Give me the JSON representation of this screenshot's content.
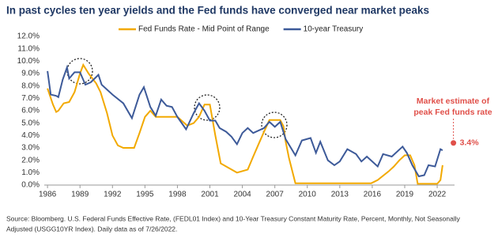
{
  "chart_data": {
    "type": "line",
    "title": "In past cycles ten year yields and the Fed funds have converged near market peaks",
    "source": [
      "Source: Bloomberg. U.S. Federal Funds Effective Rate, (FEDL01 Index) and 10-Year Treasury Constant Maturity Rate, Percent, Monthly, Not Seasonally",
      "Adjusted (USGG10YR Index). Daily data as of 7/26/2022."
    ],
    "xlim": [
      1985.7,
      2023.6
    ],
    "xticks": [
      1986,
      1989,
      1992,
      1995,
      1998,
      2001,
      2004,
      2007,
      2010,
      2013,
      2016,
      2019,
      2022
    ],
    "ylim": [
      0,
      12
    ],
    "yticks": [
      {
        "value": 0,
        "label": "0.0%"
      },
      {
        "value": 1,
        "label": "1.0%"
      },
      {
        "value": 2,
        "label": "2.0%"
      },
      {
        "value": 3,
        "label": "3.0%"
      },
      {
        "value": 4,
        "label": "4.0%"
      },
      {
        "value": 5,
        "label": "5.0%"
      },
      {
        "value": 6,
        "label": "6.0%"
      },
      {
        "value": 7,
        "label": "7.0%"
      },
      {
        "value": 8,
        "label": "8.0%"
      },
      {
        "value": 9,
        "label": "9.0%"
      },
      {
        "value": 10,
        "label": "10.0%"
      },
      {
        "value": 11,
        "label": "11.0%"
      },
      {
        "value": 12,
        "label": "12.0%"
      }
    ],
    "grid": false,
    "legend": "top",
    "series": [
      {
        "name": "Fed Funds Rate - Mid Point of Range",
        "color": "#f2a900",
        "x": [
          1986.0,
          1986.5,
          1986.8,
          1987.0,
          1987.5,
          1988.0,
          1988.5,
          1989.0,
          1989.3,
          1989.8,
          1990.5,
          1990.9,
          1991.5,
          1992.0,
          1992.5,
          1993.0,
          1994.0,
          1994.5,
          1995.0,
          1995.5,
          1996.0,
          1997.0,
          1998.0,
          1998.9,
          1999.5,
          2000.0,
          2000.5,
          2001.0,
          2001.5,
          2002.0,
          2003.0,
          2003.5,
          2004.5,
          2005.0,
          2005.5,
          2006.0,
          2006.5,
          2007.5,
          2007.8,
          2008.0,
          2008.3,
          2008.9,
          2015.9,
          2016.5,
          2017.5,
          2018.0,
          2018.5,
          2019.0,
          2019.5,
          2019.9,
          2020.2,
          2022.0,
          2022.3,
          2022.5
        ],
        "values": [
          7.8,
          6.5,
          5.9,
          6.0,
          6.6,
          6.7,
          7.5,
          9.0,
          9.7,
          9.0,
          8.2,
          7.5,
          5.8,
          4.0,
          3.2,
          3.0,
          3.0,
          4.2,
          5.5,
          6.0,
          5.5,
          5.5,
          5.5,
          4.8,
          5.0,
          5.5,
          6.5,
          6.5,
          4.0,
          1.75,
          1.25,
          1.0,
          1.25,
          2.3,
          3.3,
          4.3,
          5.25,
          5.25,
          4.75,
          3.5,
          2.2,
          0.15,
          0.15,
          0.4,
          1.1,
          1.5,
          2.0,
          2.4,
          2.4,
          1.6,
          0.1,
          0.1,
          0.4,
          1.6
        ]
      },
      {
        "name": "10-year Treasury",
        "color": "#3d5a99",
        "x": [
          1986.0,
          1986.3,
          1986.8,
          1987.0,
          1987.4,
          1987.8,
          1988.0,
          1988.5,
          1989.0,
          1989.5,
          1990.0,
          1990.7,
          1991.0,
          1992.0,
          1993.0,
          1993.8,
          1994.5,
          1994.9,
          1995.5,
          1996.0,
          1996.5,
          1997.0,
          1997.5,
          1998.0,
          1998.8,
          1999.5,
          2000.0,
          2000.5,
          2001.0,
          2001.5,
          2001.9,
          2002.5,
          2003.0,
          2003.5,
          2004.0,
          2004.5,
          2005.0,
          2006.0,
          2006.5,
          2007.0,
          2007.5,
          2008.0,
          2008.9,
          2009.5,
          2010.3,
          2010.8,
          2011.2,
          2011.9,
          2012.5,
          2013.0,
          2013.7,
          2014.5,
          2015.0,
          2015.5,
          2016.5,
          2017.0,
          2017.8,
          2018.8,
          2019.2,
          2019.7,
          2020.3,
          2020.8,
          2021.2,
          2021.8,
          2022.3,
          2022.5
        ],
        "values": [
          9.2,
          7.3,
          7.2,
          7.1,
          8.5,
          9.5,
          8.6,
          9.1,
          9.1,
          8.1,
          8.3,
          8.9,
          8.1,
          7.3,
          6.6,
          5.4,
          7.3,
          7.9,
          6.3,
          5.6,
          6.9,
          6.4,
          6.3,
          5.5,
          4.5,
          5.8,
          6.6,
          6.0,
          5.2,
          5.2,
          4.6,
          4.3,
          3.9,
          3.3,
          4.2,
          4.6,
          4.2,
          4.6,
          5.1,
          4.7,
          5.1,
          3.7,
          2.4,
          3.6,
          3.8,
          2.6,
          3.5,
          2.0,
          1.6,
          1.9,
          2.9,
          2.5,
          1.9,
          2.3,
          1.5,
          2.5,
          2.3,
          3.1,
          2.6,
          1.6,
          0.7,
          0.8,
          1.6,
          1.5,
          2.9,
          2.8
        ]
      }
    ],
    "annotation": {
      "text": [
        "Market estimate of",
        "peak Fed funds rate"
      ],
      "color": "#e0504a",
      "point": {
        "x": 2023.5,
        "value": 3.4,
        "label": "3.4%"
      }
    }
  }
}
